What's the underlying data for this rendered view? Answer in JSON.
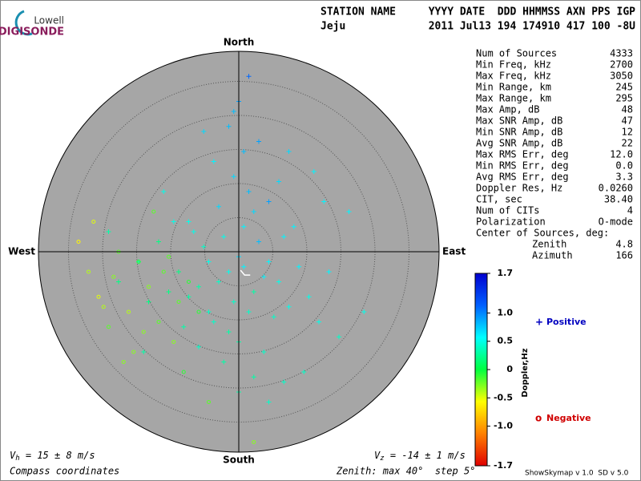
{
  "logo": {
    "brand": "Lowell",
    "product": "DIGISONDE"
  },
  "header": {
    "station_label": "STATION NAME",
    "station": "Jeju",
    "fields_label": "YYYY DATE  DDD HHMMSS AXN PPS IGP",
    "fields": "2011 Jul13 194 174910 417 100 -8U"
  },
  "stats": {
    "rows": [
      [
        "Num of Sources",
        "4333"
      ],
      [
        "Min Freq, kHz",
        "2700"
      ],
      [
        "Max Freq, kHz",
        "3050"
      ],
      [
        "Min Range, km",
        "245"
      ],
      [
        "Max Range, km",
        "295"
      ],
      [
        "Max Amp, dB",
        "48"
      ],
      [
        "Max SNR Amp, dB",
        "47"
      ],
      [
        "Min SNR Amp, dB",
        "12"
      ],
      [
        "Avg SNR Amp, dB",
        "22"
      ],
      [
        "Max RMS Err, deg",
        "12.0"
      ],
      [
        "Min RMS Err, deg",
        "0.0"
      ],
      [
        "Avg RMS Err, deg",
        "3.3"
      ],
      [
        "Doppler Res, Hz",
        "0.0260"
      ],
      [
        "CIT, sec",
        "38.40"
      ],
      [
        "Num of CITs",
        "4"
      ],
      [
        "Polarization",
        "O-mode"
      ]
    ],
    "center_heading": "Center of Sources, deg:",
    "zenith_label": "Zenith",
    "zenith": 4.8,
    "azimuth_label": "Azimuth",
    "azimuth": 166
  },
  "footer": {
    "vh_symbol": "V",
    "vh_sub": "h",
    "vh_value": " = 15 ± 8 m/s",
    "vz_symbol": "V",
    "vz_sub": "z",
    "vz_value": " = -14 ± 1 m/s",
    "coords": "Compass coordinates",
    "zenith_note": "Zenith: max 40°  step 5°",
    "version": "ShowSkymap v 1.0  SD v 5.0"
  },
  "chart_data": {
    "type": "scatter",
    "compass": {
      "north": "North",
      "south": "South",
      "east": "East",
      "west": "West"
    },
    "rlim": [
      0,
      40
    ],
    "rticks": [
      6.8,
      13.6,
      20.4,
      27.2,
      34
    ],
    "series": [
      {
        "name": "Positive",
        "marker": "+",
        "color": "#0000c0",
        "x": [
          -2,
          -4,
          1,
          3,
          -6,
          -1,
          5,
          -8,
          0,
          2,
          -3,
          6,
          -10,
          4,
          -5,
          8,
          -12,
          1,
          -7,
          10,
          -2,
          3,
          -14,
          7,
          -9,
          12,
          0,
          -4,
          2,
          -6,
          9,
          -11,
          5,
          -1,
          14,
          -3,
          6,
          -16,
          11,
          -8,
          3,
          -13,
          16,
          -5,
          1,
          18,
          -18,
          8,
          -2,
          20,
          -20,
          4,
          13,
          -15,
          0,
          22,
          -7,
          9,
          -24,
          15,
          0,
          2,
          -1,
          25,
          -26,
          10,
          6,
          -19,
          17,
          -10
        ],
        "y": [
          -4,
          -6,
          -3,
          -8,
          -2,
          -10,
          -5,
          -7,
          -1,
          -12,
          3,
          -2,
          -9,
          2,
          -14,
          -6,
          -4,
          5,
          1,
          -11,
          -16,
          8,
          -8,
          -13,
          4,
          -3,
          -18,
          9,
          12,
          -12,
          3,
          -15,
          -20,
          15,
          -9,
          -22,
          10,
          2,
          5,
          -19,
          -25,
          6,
          -14,
          18,
          20,
          -4,
          -10,
          14,
          25,
          -17,
          -2,
          22,
          -24,
          12,
          -28,
          8,
          24,
          -26,
          -6,
          16,
          30,
          35,
          28,
          -12,
          4,
          20,
          -30,
          -20,
          10,
          6
        ],
        "doppler": [
          0.5,
          0.4,
          0.6,
          0.3,
          0.5,
          0.4,
          0.6,
          0.3,
          0.7,
          0.4,
          0.5,
          0.6,
          0.3,
          0.8,
          0.4,
          0.5,
          0.2,
          0.6,
          0.4,
          0.5,
          0.3,
          0.7,
          0.2,
          0.4,
          0.5,
          0.6,
          0.3,
          0.7,
          0.8,
          0.4,
          0.6,
          0.3,
          0.4,
          0.7,
          0.5,
          0.3,
          0.9,
          0.2,
          0.6,
          0.4,
          0.3,
          0.5,
          0.5,
          0.6,
          0.8,
          0.6,
          0.2,
          0.7,
          0.8,
          0.4,
          0.3,
          0.9,
          0.4,
          0.5,
          0.3,
          0.6,
          0.7,
          0.4,
          0.2,
          0.6,
          0.9,
          1.1,
          0.8,
          0.5,
          0.3,
          0.7,
          0.4,
          0.3,
          0.6,
          0.5
        ]
      },
      {
        "name": "Negative",
        "marker": "o",
        "color": "#d00000",
        "x": [
          -15,
          -18,
          -20,
          -12,
          -22,
          -25,
          -16,
          -10,
          -28,
          -14,
          -19,
          -24,
          -30,
          -8,
          -21,
          -26,
          -13,
          -32,
          -17,
          -23,
          -11,
          -27,
          -6,
          3,
          -29
        ],
        "y": [
          -4,
          -7,
          -2,
          -10,
          -12,
          -5,
          -14,
          -6,
          -9,
          -1,
          -16,
          0,
          -4,
          -12,
          -20,
          -15,
          -18,
          2,
          8,
          -22,
          -24,
          -11,
          -30,
          -38,
          6
        ],
        "doppler": [
          -0.2,
          -0.3,
          -0.1,
          -0.2,
          -0.4,
          -0.3,
          -0.2,
          -0.1,
          -0.5,
          -0.2,
          -0.3,
          -0.2,
          -0.4,
          -0.1,
          -0.3,
          -0.2,
          -0.3,
          -0.6,
          -0.2,
          -0.3,
          -0.1,
          -0.4,
          -0.2,
          -0.3,
          -0.5
        ]
      }
    ],
    "colorbar": {
      "label": "Doppler,Hz",
      "clim": [
        -1.7,
        1.7
      ],
      "ticks": [
        1.7,
        {
          "value": 1.0,
          "label": "1.0"
        },
        0.5,
        0,
        -0.5,
        {
          "value": -1.0,
          "label": "-1.0"
        },
        -1.7
      ],
      "colors": [
        "#e00000",
        "#ff8000",
        "#ffff00",
        "#00ff40",
        "#00ffff",
        "#0060ff",
        "#0000d0"
      ]
    }
  }
}
